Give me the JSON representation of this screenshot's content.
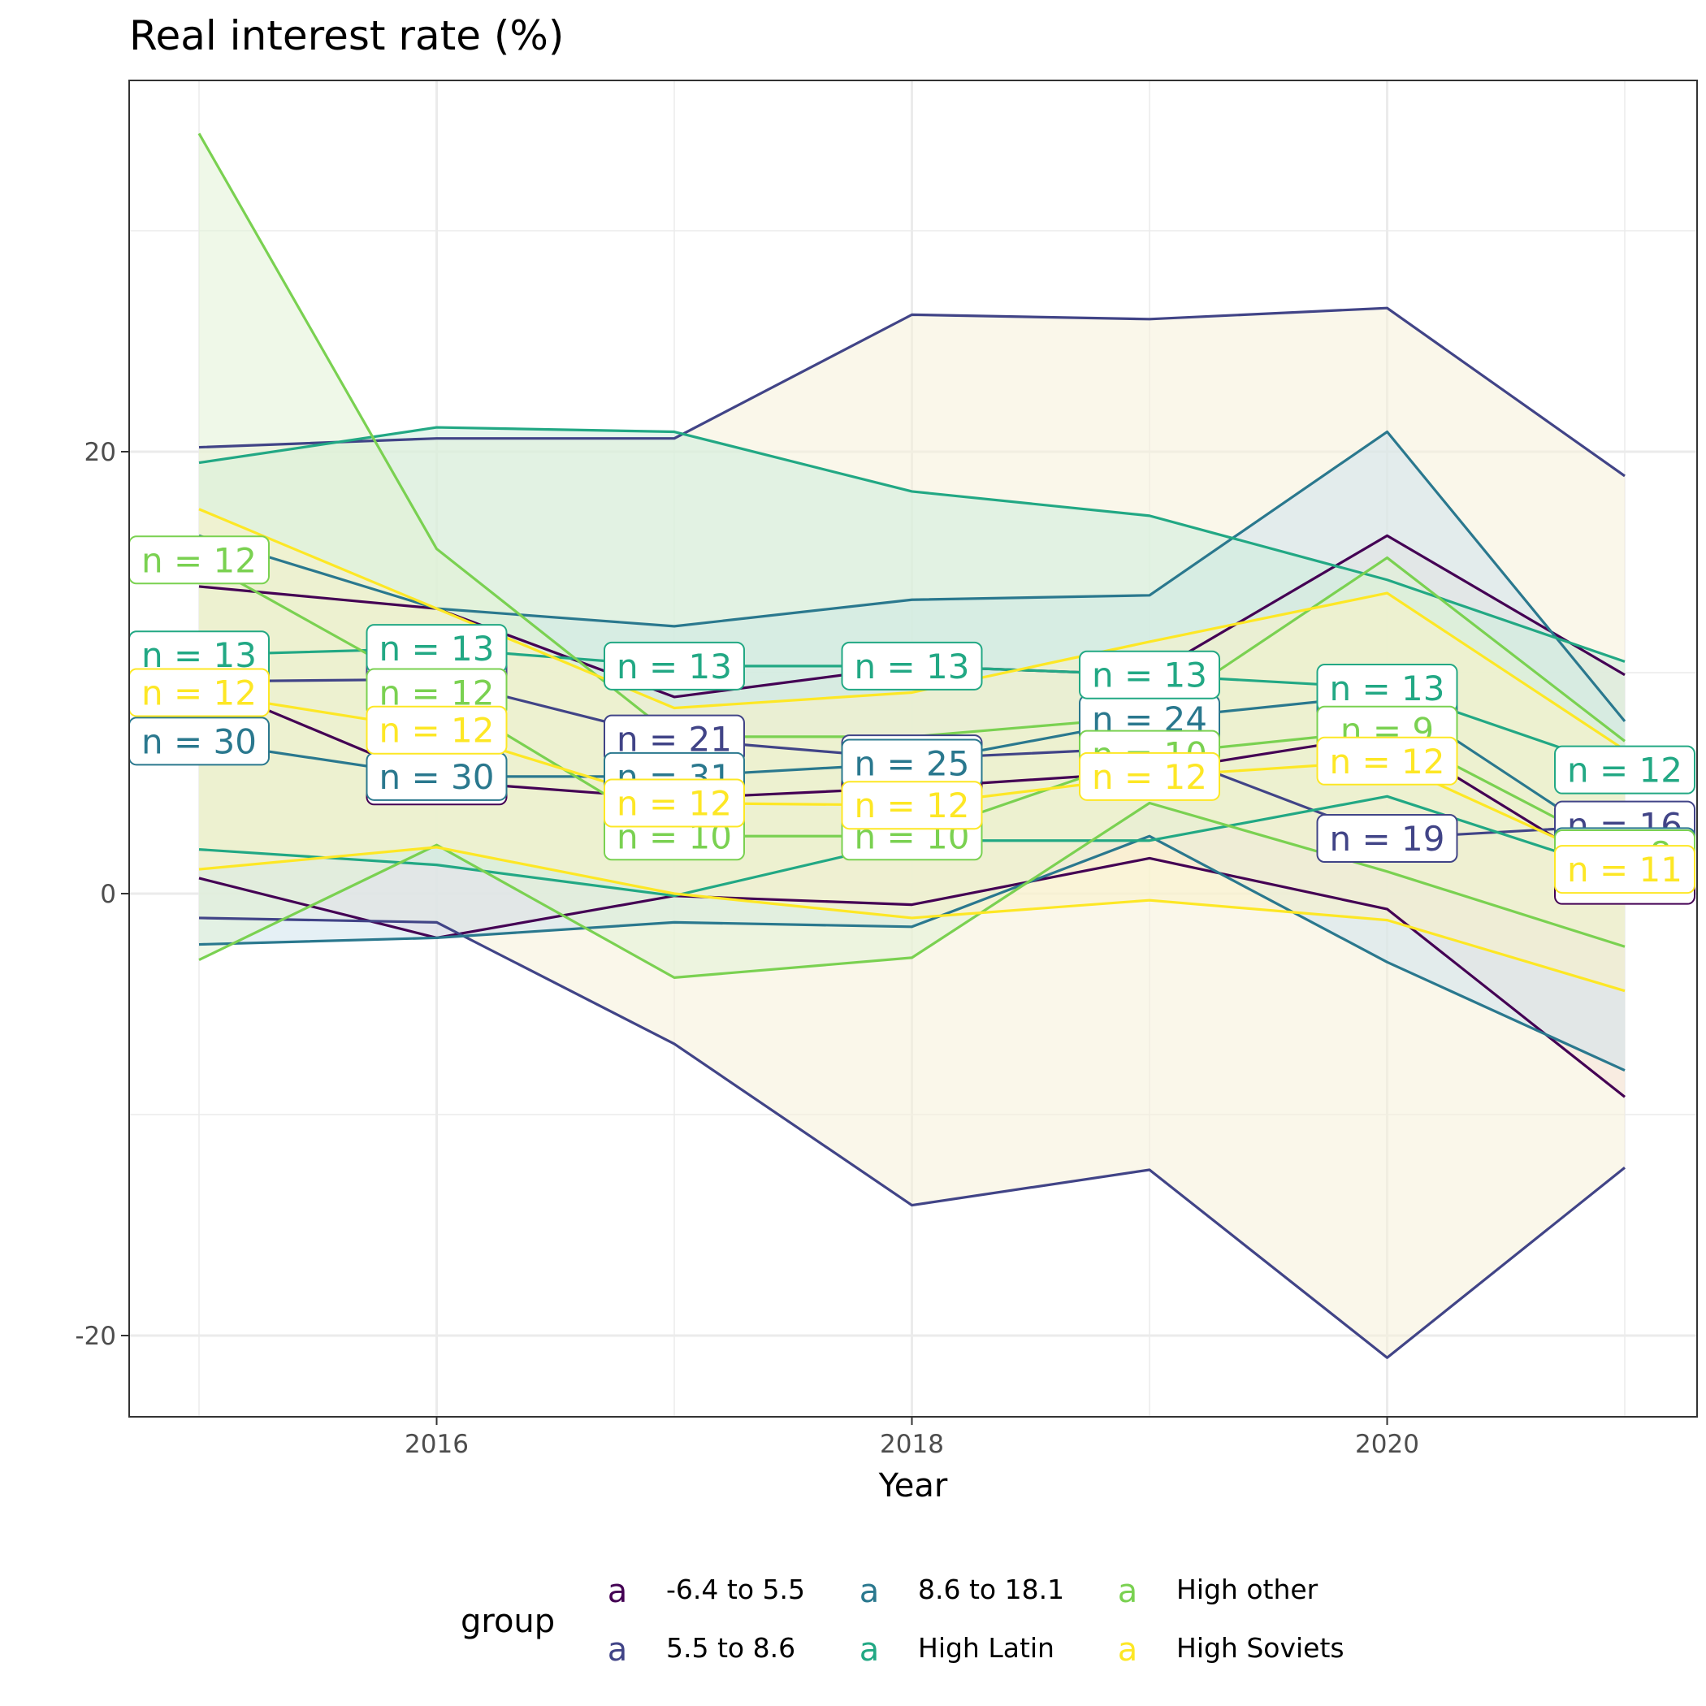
{
  "chart_data": {
    "type": "line",
    "title": "Real interest rate (%)",
    "xlabel": "Year",
    "ylabel": "",
    "xlim": [
      2014.85,
      2021.15
    ],
    "ylim": [
      -23.7,
      36.9
    ],
    "x_ticks": [
      2016,
      2018,
      2020
    ],
    "y_ticks": [
      -20,
      0,
      20
    ],
    "grid": true,
    "legend": {
      "title": "group",
      "placement": "bottom",
      "key_glyph": "a",
      "entries": [
        {
          "label": "-6.4 to 5.5",
          "color": "#440154"
        },
        {
          "label": "5.5 to 8.6",
          "color": "#414487"
        },
        {
          "label": "8.6 to 18.1",
          "color": "#2A788E"
        },
        {
          "label": "High Latin",
          "color": "#22A884"
        },
        {
          "label": "High other",
          "color": "#7AD151"
        },
        {
          "label": "High Soviets",
          "color": "#FDE725"
        }
      ]
    },
    "x": [
      2015,
      2016,
      2017,
      2018,
      2019,
      2020,
      2021
    ],
    "series": [
      {
        "name": "-6.4 to 5.5",
        "color": "#440154",
        "fill": "#f7d4db",
        "upper": [
          13.9,
          12.9,
          8.9,
          10.3,
          9.9,
          16.2,
          9.9
        ],
        "mean": [
          9.6,
          5.1,
          4.3,
          4.8,
          5.5,
          7.2,
          0.6
        ],
        "lower": [
          0.7,
          -2.0,
          -0.1,
          -0.5,
          1.6,
          -0.7,
          -9.2
        ],
        "n": [
          12,
          12,
          12,
          12,
          12,
          12,
          11
        ]
      },
      {
        "name": "5.5 to 8.6",
        "color": "#414487",
        "fill": "#f5f0d8",
        "upper": [
          20.2,
          20.6,
          20.6,
          26.2,
          26.0,
          26.5,
          18.9
        ],
        "mean": [
          9.6,
          9.7,
          7.0,
          6.1,
          6.6,
          2.5,
          3.1
        ],
        "lower": [
          -1.1,
          -1.3,
          -6.8,
          -14.1,
          -12.5,
          -21.0,
          -12.4
        ],
        "n": [
          19,
          20,
          21,
          21,
          24,
          19,
          16
        ]
      },
      {
        "name": "8.6 to 18.1",
        "color": "#2A788E",
        "fill": "#cfe4ec",
        "upper": [
          16.2,
          12.9,
          12.1,
          13.3,
          13.5,
          20.9,
          7.8
        ],
        "mean": [
          6.9,
          5.3,
          5.3,
          5.9,
          7.9,
          9.0,
          1.9
        ],
        "lower": [
          -2.3,
          -2.0,
          -1.3,
          -1.5,
          2.6,
          -3.1,
          -8.0
        ],
        "n": [
          30,
          30,
          31,
          25,
          24,
          19,
          16
        ]
      },
      {
        "name": "High Latin",
        "color": "#22A884",
        "fill": "#cdeedc",
        "upper": [
          19.5,
          21.1,
          20.9,
          18.2,
          17.1,
          14.2,
          10.5
        ],
        "mean": [
          10.8,
          11.1,
          10.3,
          10.3,
          9.9,
          9.3,
          5.6
        ],
        "lower": [
          2.0,
          1.3,
          -0.1,
          2.4,
          2.4,
          4.4,
          0.9
        ],
        "n": [
          13,
          13,
          13,
          13,
          13,
          13,
          12
        ]
      },
      {
        "name": "High other",
        "color": "#7AD151",
        "fill": "#e2f2d6",
        "upper": [
          34.4,
          15.6,
          7.1,
          7.1,
          8.0,
          15.2,
          6.9
        ],
        "mean": [
          15.1,
          9.1,
          2.6,
          2.6,
          6.3,
          7.4,
          1.8
        ],
        "lower": [
          -3.0,
          2.2,
          -3.8,
          -2.9,
          4.1,
          1.0,
          -2.4
        ],
        "n": [
          12,
          12,
          10,
          10,
          10,
          9,
          8
        ]
      },
      {
        "name": "High Soviets",
        "color": "#FDE725",
        "fill": "#faf3c8",
        "upper": [
          17.4,
          12.9,
          8.4,
          9.1,
          11.4,
          13.6,
          6.5
        ],
        "mean": [
          9.1,
          7.4,
          4.1,
          4.0,
          5.3,
          6.0,
          1.1
        ],
        "lower": [
          1.1,
          2.1,
          0.0,
          -1.1,
          -0.3,
          -1.2,
          -4.4
        ],
        "n": [
          12,
          12,
          12,
          12,
          12,
          12,
          11
        ]
      }
    ]
  }
}
